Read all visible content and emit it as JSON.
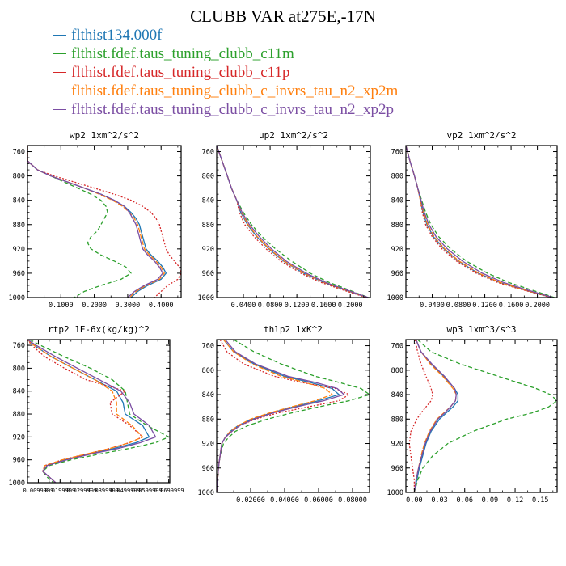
{
  "title": "CLUBB VAR at275E,-17N",
  "legend": [
    {
      "name": "flthist134.000f",
      "color": "#1f77b4"
    },
    {
      "name": "flthist.fdef.taus_tuning_clubb_c11m",
      "color": "#2ca02c"
    },
    {
      "name": "flthist.fdef.taus_tuning_clubb_c11p",
      "color": "#d62728"
    },
    {
      "name": "flthist.fdef.taus_tuning_clubb_c_invrs_tau_n2_xp2m",
      "color": "#ff7f0e"
    },
    {
      "name": "flthist.fdef.taus_tuning_clubb_c_invrs_tau_n2_xp2p",
      "color": "#7b4ea3"
    }
  ],
  "chart_data": [
    {
      "type": "line",
      "title": "wp2  1xm^2/s^2",
      "xlim": [
        0,
        0.46
      ],
      "ylim": [
        1000,
        750
      ],
      "xticks": [
        0.1,
        0.2,
        0.3,
        0.4
      ],
      "xtick_labels": [
        "0.1000",
        "0.2000",
        "0.3000",
        "0.4000"
      ],
      "yticks": [
        760,
        800,
        840,
        880,
        920,
        960,
        1000
      ],
      "ytick_labels": [
        "760",
        "800",
        "840",
        "880",
        "920",
        "960",
        "1000"
      ],
      "y": [
        750,
        775,
        780,
        790,
        800,
        810,
        820,
        830,
        840,
        850,
        860,
        870,
        880,
        890,
        900,
        910,
        920,
        930,
        940,
        950,
        960,
        970,
        980,
        990,
        1000
      ],
      "series": [
        {
          "name": "flthist134.000f",
          "values": [
            0.0,
            0.0,
            0.01,
            0.03,
            0.07,
            0.12,
            0.17,
            0.22,
            0.26,
            0.29,
            0.31,
            0.325,
            0.335,
            0.34,
            0.345,
            0.35,
            0.355,
            0.37,
            0.39,
            0.405,
            0.415,
            0.4,
            0.36,
            0.33,
            0.31
          ]
        },
        {
          "name": "flthist.fdef.taus_tuning_clubb_c11m",
          "values": [
            0.0,
            0.0,
            0.01,
            0.03,
            0.07,
            0.11,
            0.15,
            0.19,
            0.22,
            0.235,
            0.24,
            0.23,
            0.22,
            0.21,
            0.19,
            0.18,
            0.19,
            0.22,
            0.26,
            0.295,
            0.31,
            0.28,
            0.22,
            0.17,
            0.14
          ]
        },
        {
          "name": "flthist.fdef.taus_tuning_clubb_c11p",
          "values": [
            0.0,
            0.0,
            0.01,
            0.03,
            0.08,
            0.14,
            0.2,
            0.26,
            0.31,
            0.345,
            0.37,
            0.385,
            0.395,
            0.4,
            0.405,
            0.41,
            0.415,
            0.425,
            0.44,
            0.455,
            0.46,
            0.45,
            0.42,
            0.4,
            0.38
          ]
        },
        {
          "name": "flthist.fdef.taus_tuning_clubb_c_invrs_tau_n2_xp2m",
          "values": [
            0.0,
            0.0,
            0.01,
            0.03,
            0.07,
            0.12,
            0.17,
            0.215,
            0.255,
            0.285,
            0.305,
            0.32,
            0.33,
            0.335,
            0.34,
            0.345,
            0.35,
            0.365,
            0.385,
            0.4,
            0.41,
            0.395,
            0.355,
            0.325,
            0.305
          ]
        },
        {
          "name": "flthist.fdef.taus_tuning_clubb_c_invrs_tau_n2_xp2p",
          "values": [
            0.0,
            0.0,
            0.01,
            0.03,
            0.07,
            0.12,
            0.17,
            0.22,
            0.26,
            0.29,
            0.305,
            0.315,
            0.325,
            0.33,
            0.335,
            0.34,
            0.345,
            0.36,
            0.38,
            0.395,
            0.405,
            0.39,
            0.35,
            0.32,
            0.3
          ]
        }
      ]
    },
    {
      "type": "line",
      "title": "up2  1xm^2/s^2",
      "xlim": [
        0,
        0.23
      ],
      "ylim": [
        1000,
        750
      ],
      "xticks": [
        0.04,
        0.08,
        0.12,
        0.16,
        0.2
      ],
      "xtick_labels": [
        "0.0400",
        "0.0800",
        "0.1200",
        "0.1600",
        "0.2000"
      ],
      "yticks": [
        760,
        800,
        840,
        880,
        920,
        960,
        1000
      ],
      "ytick_labels": [
        "760",
        "800",
        "840",
        "880",
        "920",
        "960",
        "1000"
      ],
      "y": [
        750,
        775,
        800,
        820,
        840,
        860,
        880,
        900,
        920,
        940,
        960,
        975,
        985,
        995,
        1000
      ],
      "series": [
        {
          "name": "flthist134.000f",
          "values": [
            0.0,
            0.008,
            0.016,
            0.022,
            0.03,
            0.036,
            0.046,
            0.06,
            0.078,
            0.1,
            0.13,
            0.16,
            0.185,
            0.212,
            0.225
          ]
        },
        {
          "name": "flthist.fdef.taus_tuning_clubb_c11m",
          "values": [
            0.0,
            0.008,
            0.016,
            0.022,
            0.03,
            0.04,
            0.052,
            0.068,
            0.088,
            0.112,
            0.14,
            0.168,
            0.192,
            0.215,
            0.228
          ]
        },
        {
          "name": "flthist.fdef.taus_tuning_clubb_c11p",
          "values": [
            0.0,
            0.008,
            0.016,
            0.022,
            0.03,
            0.034,
            0.042,
            0.056,
            0.074,
            0.096,
            0.126,
            0.156,
            0.182,
            0.21,
            0.224
          ]
        },
        {
          "name": "flthist.fdef.taus_tuning_clubb_c_invrs_tau_n2_xp2m",
          "values": [
            0.0,
            0.008,
            0.016,
            0.022,
            0.03,
            0.037,
            0.047,
            0.061,
            0.079,
            0.101,
            0.131,
            0.161,
            0.186,
            0.213,
            0.226
          ]
        },
        {
          "name": "flthist.fdef.taus_tuning_clubb_c_invrs_tau_n2_xp2p",
          "values": [
            0.0,
            0.008,
            0.016,
            0.022,
            0.03,
            0.038,
            0.049,
            0.064,
            0.082,
            0.104,
            0.134,
            0.163,
            0.188,
            0.214,
            0.227
          ]
        }
      ]
    },
    {
      "type": "line",
      "title": "vp2  1xm^2/s^2",
      "xlim": [
        0,
        0.23
      ],
      "ylim": [
        1000,
        750
      ],
      "xticks": [
        0.04,
        0.08,
        0.12,
        0.16,
        0.2
      ],
      "xtick_labels": [
        "0.0400",
        "0.0800",
        "0.1200",
        "0.1600",
        "0.2000"
      ],
      "yticks": [
        760,
        800,
        840,
        880,
        920,
        960,
        1000
      ],
      "ytick_labels": [
        "760",
        "800",
        "840",
        "880",
        "920",
        "960",
        "1000"
      ],
      "y": [
        750,
        775,
        800,
        820,
        840,
        860,
        880,
        900,
        920,
        940,
        960,
        975,
        985,
        995,
        1000
      ],
      "series": [
        {
          "name": "flthist134.000f",
          "values": [
            0.0,
            0.006,
            0.013,
            0.018,
            0.022,
            0.026,
            0.032,
            0.042,
            0.058,
            0.08,
            0.11,
            0.142,
            0.172,
            0.205,
            0.222
          ]
        },
        {
          "name": "flthist.fdef.taus_tuning_clubb_c11m",
          "values": [
            0.0,
            0.006,
            0.013,
            0.018,
            0.024,
            0.03,
            0.038,
            0.05,
            0.068,
            0.092,
            0.124,
            0.156,
            0.184,
            0.212,
            0.226
          ]
        },
        {
          "name": "flthist.fdef.taus_tuning_clubb_c11p",
          "values": [
            0.0,
            0.006,
            0.013,
            0.018,
            0.022,
            0.025,
            0.03,
            0.04,
            0.055,
            0.077,
            0.107,
            0.139,
            0.17,
            0.204,
            0.221
          ]
        },
        {
          "name": "flthist.fdef.taus_tuning_clubb_c_invrs_tau_n2_xp2m",
          "values": [
            0.0,
            0.006,
            0.013,
            0.018,
            0.022,
            0.027,
            0.033,
            0.043,
            0.059,
            0.081,
            0.111,
            0.143,
            0.173,
            0.206,
            0.223
          ]
        },
        {
          "name": "flthist.fdef.taus_tuning_clubb_c_invrs_tau_n2_xp2p",
          "values": [
            0.0,
            0.006,
            0.013,
            0.018,
            0.023,
            0.028,
            0.035,
            0.046,
            0.063,
            0.086,
            0.116,
            0.148,
            0.177,
            0.208,
            0.224
          ]
        }
      ]
    },
    {
      "type": "line",
      "title": "rtp2  1E-6x(kg/kg)^2",
      "xlim": [
        0.005,
        0.0705
      ],
      "ylim": [
        1000,
        750
      ],
      "xticks": [
        0.01,
        0.02,
        0.03,
        0.04,
        0.05,
        0.06,
        0.07
      ],
      "xtick_labels": [
        "0.0099999",
        "0.0199999",
        "0.0299999",
        "0.0399999",
        "0.0499999",
        "0.0599999",
        "0.0699999"
      ],
      "yticks": [
        760,
        800,
        840,
        880,
        920,
        960,
        1000
      ],
      "ytick_labels": [
        "760",
        "800",
        "840",
        "880",
        "920",
        "960",
        "1000"
      ],
      "y": [
        750,
        760,
        780,
        800,
        820,
        840,
        860,
        880,
        900,
        920,
        930,
        940,
        950,
        960,
        970,
        980,
        990,
        1000
      ],
      "series": [
        {
          "name": "flthist134.000f",
          "values": [
            0.005,
            0.008,
            0.016,
            0.026,
            0.036,
            0.046,
            0.049,
            0.05,
            0.058,
            0.061,
            0.055,
            0.045,
            0.033,
            0.022,
            0.014,
            0.012,
            0.015,
            0.018
          ]
        },
        {
          "name": "flthist.fdef.taus_tuning_clubb_c11m",
          "values": [
            0.006,
            0.011,
            0.022,
            0.034,
            0.044,
            0.05,
            0.051,
            0.052,
            0.06,
            0.07,
            0.064,
            0.052,
            0.038,
            0.025,
            0.015,
            0.012,
            0.014,
            0.017
          ]
        },
        {
          "name": "flthist.fdef.taus_tuning_clubb_c11p",
          "values": [
            0.005,
            0.007,
            0.013,
            0.022,
            0.032,
            0.05,
            0.043,
            0.044,
            0.052,
            0.058,
            0.052,
            0.043,
            0.032,
            0.021,
            0.013,
            0.012,
            0.015,
            0.018
          ]
        },
        {
          "name": "flthist.fdef.taus_tuning_clubb_c_invrs_tau_n2_xp2m",
          "values": [
            0.005,
            0.008,
            0.016,
            0.026,
            0.036,
            0.044,
            0.046,
            0.046,
            0.053,
            0.058,
            0.052,
            0.043,
            0.032,
            0.021,
            0.013,
            0.012,
            0.015,
            0.018
          ]
        },
        {
          "name": "flthist.fdef.taus_tuning_clubb_c_invrs_tau_n2_xp2p",
          "values": [
            0.005,
            0.009,
            0.018,
            0.028,
            0.038,
            0.048,
            0.052,
            0.054,
            0.061,
            0.064,
            0.057,
            0.047,
            0.034,
            0.023,
            0.014,
            0.012,
            0.015,
            0.018
          ]
        }
      ]
    },
    {
      "type": "line",
      "title": "thlp2  1xK^2",
      "xlim": [
        0,
        0.09
      ],
      "ylim": [
        1000,
        750
      ],
      "xticks": [
        0.02,
        0.04,
        0.06,
        0.08
      ],
      "xtick_labels": [
        "0.02000",
        "0.04000",
        "0.06000",
        "0.08000"
      ],
      "yticks": [
        760,
        800,
        840,
        880,
        920,
        960,
        1000
      ],
      "ytick_labels": [
        "760",
        "800",
        "840",
        "880",
        "920",
        "960",
        "1000"
      ],
      "y": [
        750,
        770,
        790,
        810,
        820,
        830,
        840,
        850,
        860,
        870,
        880,
        890,
        900,
        910,
        920,
        940,
        960,
        980,
        1000
      ],
      "series": [
        {
          "name": "flthist134.000f",
          "values": [
            0.004,
            0.01,
            0.022,
            0.04,
            0.055,
            0.068,
            0.072,
            0.06,
            0.045,
            0.032,
            0.021,
            0.013,
            0.008,
            0.005,
            0.003,
            0.002,
            0.001,
            0.0005,
            0.0
          ]
        },
        {
          "name": "flthist.fdef.taus_tuning_clubb_c11m",
          "values": [
            0.01,
            0.022,
            0.038,
            0.058,
            0.072,
            0.085,
            0.09,
            0.078,
            0.06,
            0.044,
            0.03,
            0.019,
            0.011,
            0.007,
            0.004,
            0.002,
            0.001,
            0.0005,
            0.0
          ]
        },
        {
          "name": "flthist.fdef.taus_tuning_clubb_c11p",
          "values": [
            0.002,
            0.006,
            0.016,
            0.034,
            0.05,
            0.07,
            0.078,
            0.072,
            0.054,
            0.036,
            0.023,
            0.014,
            0.009,
            0.005,
            0.003,
            0.002,
            0.001,
            0.0005,
            0.0
          ]
        },
        {
          "name": "flthist.fdef.taus_tuning_clubb_c_invrs_tau_n2_xp2m",
          "values": [
            0.004,
            0.01,
            0.021,
            0.038,
            0.052,
            0.064,
            0.068,
            0.058,
            0.044,
            0.031,
            0.02,
            0.013,
            0.008,
            0.005,
            0.003,
            0.002,
            0.001,
            0.0005,
            0.0
          ]
        },
        {
          "name": "flthist.fdef.taus_tuning_clubb_c_invrs_tau_n2_xp2p",
          "values": [
            0.005,
            0.011,
            0.023,
            0.042,
            0.058,
            0.071,
            0.075,
            0.063,
            0.047,
            0.033,
            0.022,
            0.014,
            0.009,
            0.005,
            0.003,
            0.002,
            0.001,
            0.0005,
            0.0
          ]
        }
      ]
    },
    {
      "type": "line",
      "title": "wp3  1xm^3/s^3",
      "xlim": [
        -0.01,
        0.17
      ],
      "ylim": [
        1000,
        750
      ],
      "xticks": [
        0.0,
        0.03,
        0.06,
        0.09,
        0.12,
        0.15
      ],
      "xtick_labels": [
        "0.00",
        "0.03",
        "0.06",
        "0.09",
        "0.12",
        "0.15"
      ],
      "yticks": [
        760,
        800,
        840,
        880,
        920,
        960,
        1000
      ],
      "ytick_labels": [
        "760",
        "800",
        "840",
        "880",
        "920",
        "960",
        "1000"
      ],
      "y": [
        750,
        770,
        790,
        810,
        830,
        840,
        850,
        860,
        870,
        880,
        900,
        920,
        940,
        960,
        980,
        1000
      ],
      "series": [
        {
          "name": "flthist134.000f",
          "values": [
            0.002,
            0.008,
            0.02,
            0.035,
            0.048,
            0.052,
            0.052,
            0.046,
            0.038,
            0.03,
            0.02,
            0.014,
            0.01,
            0.006,
            0.003,
            0.0
          ]
        },
        {
          "name": "flthist.fdef.taus_tuning_clubb_c11m",
          "values": [
            0.004,
            0.02,
            0.055,
            0.1,
            0.145,
            0.162,
            0.17,
            0.16,
            0.14,
            0.11,
            0.07,
            0.04,
            0.022,
            0.01,
            0.004,
            0.0
          ]
        },
        {
          "name": "flthist.fdef.taus_tuning_clubb_c11p",
          "values": [
            0.001,
            0.004,
            0.008,
            0.014,
            0.02,
            0.022,
            0.02,
            0.014,
            0.008,
            0.003,
            -0.004,
            -0.006,
            -0.004,
            -0.002,
            0.0,
            0.0
          ]
        },
        {
          "name": "flthist.fdef.taus_tuning_clubb_c_invrs_tau_n2_xp2m",
          "values": [
            0.002,
            0.008,
            0.019,
            0.034,
            0.046,
            0.05,
            0.049,
            0.043,
            0.035,
            0.027,
            0.018,
            0.012,
            0.008,
            0.005,
            0.002,
            0.0
          ]
        },
        {
          "name": "flthist.fdef.taus_tuning_clubb_c_invrs_tau_n2_xp2p",
          "values": [
            0.002,
            0.008,
            0.021,
            0.036,
            0.048,
            0.05,
            0.049,
            0.043,
            0.036,
            0.028,
            0.019,
            0.013,
            0.009,
            0.005,
            0.002,
            0.0
          ]
        }
      ]
    }
  ]
}
